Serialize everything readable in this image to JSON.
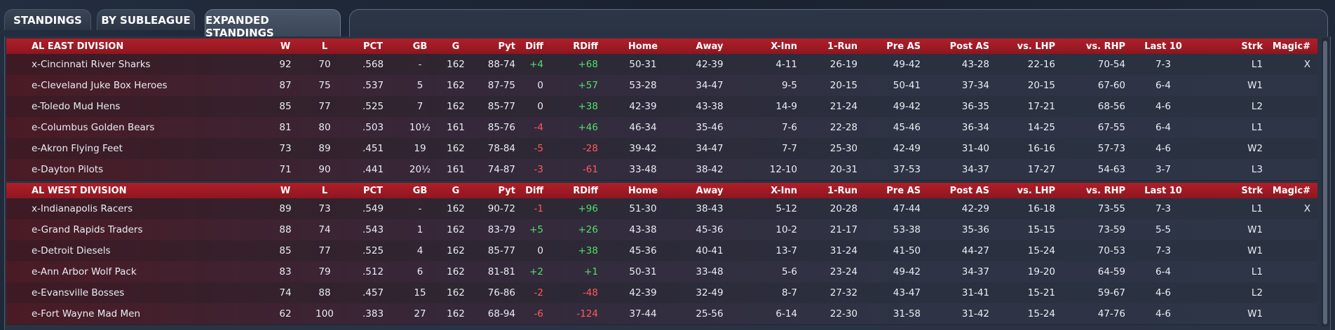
{
  "tabs": [
    {
      "label": "STANDINGS",
      "active": false
    },
    {
      "label": "BY SUBLEAGUE",
      "active": false
    },
    {
      "label": "EXPANDED STANDINGS",
      "active": true
    }
  ],
  "columns": [
    "W",
    "L",
    "PCT",
    "GB",
    "G",
    "Pyt",
    "Diff",
    "RDiff",
    "Home",
    "Away",
    "X-Inn",
    "1-Run",
    "Pre AS",
    "Post AS",
    "vs. LHP",
    "vs. RHP",
    "Last 10",
    "Strk",
    "Magic#"
  ],
  "divisions": [
    {
      "name": "AL EAST DIVISION",
      "teams": [
        {
          "team": "x-Cincinnati River Sharks",
          "W": "92",
          "L": "70",
          "PCT": ".568",
          "GB": "-",
          "G": "162",
          "Pyt": "88-74",
          "Diff": "+4",
          "RDiff": "+68",
          "Home": "50-31",
          "Away": "42-39",
          "XInn": "4-11",
          "OneRun": "26-19",
          "PreAS": "49-42",
          "PostAS": "43-28",
          "vsLHP": "22-16",
          "vsRHP": "70-54",
          "Last10": "7-3",
          "Strk": "L1",
          "Magic": "X"
        },
        {
          "team": "e-Cleveland Juke Box Heroes",
          "W": "87",
          "L": "75",
          "PCT": ".537",
          "GB": "5",
          "G": "162",
          "Pyt": "87-75",
          "Diff": "0",
          "RDiff": "+57",
          "Home": "53-28",
          "Away": "34-47",
          "XInn": "9-5",
          "OneRun": "20-15",
          "PreAS": "50-41",
          "PostAS": "37-34",
          "vsLHP": "20-15",
          "vsRHP": "67-60",
          "Last10": "6-4",
          "Strk": "W1",
          "Magic": ""
        },
        {
          "team": "e-Toledo  Mud Hens",
          "W": "85",
          "L": "77",
          "PCT": ".525",
          "GB": "7",
          "G": "162",
          "Pyt": "85-77",
          "Diff": "0",
          "RDiff": "+38",
          "Home": "42-39",
          "Away": "43-38",
          "XInn": "14-9",
          "OneRun": "21-24",
          "PreAS": "49-42",
          "PostAS": "36-35",
          "vsLHP": "17-21",
          "vsRHP": "68-56",
          "Last10": "4-6",
          "Strk": "L2",
          "Magic": ""
        },
        {
          "team": "e-Columbus Golden Bears",
          "W": "81",
          "L": "80",
          "PCT": ".503",
          "GB": "10½",
          "G": "161",
          "Pyt": "85-76",
          "Diff": "-4",
          "RDiff": "+46",
          "Home": "46-34",
          "Away": "35-46",
          "XInn": "7-6",
          "OneRun": "22-28",
          "PreAS": "45-46",
          "PostAS": "36-34",
          "vsLHP": "14-25",
          "vsRHP": "67-55",
          "Last10": "6-4",
          "Strk": "L1",
          "Magic": ""
        },
        {
          "team": "e-Akron  Flying Feet",
          "W": "73",
          "L": "89",
          "PCT": ".451",
          "GB": "19",
          "G": "162",
          "Pyt": "78-84",
          "Diff": "-5",
          "RDiff": "-28",
          "Home": "39-42",
          "Away": "34-47",
          "XInn": "7-7",
          "OneRun": "25-30",
          "PreAS": "42-49",
          "PostAS": "31-40",
          "vsLHP": "16-16",
          "vsRHP": "57-73",
          "Last10": "4-6",
          "Strk": "W2",
          "Magic": ""
        },
        {
          "team": "e-Dayton Pilots",
          "W": "71",
          "L": "90",
          "PCT": ".441",
          "GB": "20½",
          "G": "161",
          "Pyt": "74-87",
          "Diff": "-3",
          "RDiff": "-61",
          "Home": "33-48",
          "Away": "38-42",
          "XInn": "12-10",
          "OneRun": "20-31",
          "PreAS": "37-53",
          "PostAS": "34-37",
          "vsLHP": "17-27",
          "vsRHP": "54-63",
          "Last10": "3-7",
          "Strk": "L3",
          "Magic": ""
        }
      ]
    },
    {
      "name": "AL WEST DIVISION",
      "teams": [
        {
          "team": "x-Indianapolis Racers",
          "W": "89",
          "L": "73",
          "PCT": ".549",
          "GB": "-",
          "G": "162",
          "Pyt": "90-72",
          "Diff": "-1",
          "RDiff": "+96",
          "Home": "51-30",
          "Away": "38-43",
          "XInn": "5-12",
          "OneRun": "20-28",
          "PreAS": "47-44",
          "PostAS": "42-29",
          "vsLHP": "16-18",
          "vsRHP": "73-55",
          "Last10": "7-3",
          "Strk": "L1",
          "Magic": "X"
        },
        {
          "team": "e-Grand Rapids Traders",
          "W": "88",
          "L": "74",
          "PCT": ".543",
          "GB": "1",
          "G": "162",
          "Pyt": "83-79",
          "Diff": "+5",
          "RDiff": "+26",
          "Home": "43-38",
          "Away": "45-36",
          "XInn": "10-2",
          "OneRun": "21-17",
          "PreAS": "53-38",
          "PostAS": "35-36",
          "vsLHP": "15-15",
          "vsRHP": "73-59",
          "Last10": "5-5",
          "Strk": "W1",
          "Magic": ""
        },
        {
          "team": "e-Detroit Diesels",
          "W": "85",
          "L": "77",
          "PCT": ".525",
          "GB": "4",
          "G": "162",
          "Pyt": "85-77",
          "Diff": "0",
          "RDiff": "+38",
          "Home": "45-36",
          "Away": "40-41",
          "XInn": "13-7",
          "OneRun": "31-24",
          "PreAS": "41-50",
          "PostAS": "44-27",
          "vsLHP": "15-24",
          "vsRHP": "70-53",
          "Last10": "7-3",
          "Strk": "W1",
          "Magic": ""
        },
        {
          "team": "e-Ann Arbor Wolf Pack",
          "W": "83",
          "L": "79",
          "PCT": ".512",
          "GB": "6",
          "G": "162",
          "Pyt": "81-81",
          "Diff": "+2",
          "RDiff": "+1",
          "Home": "50-31",
          "Away": "33-48",
          "XInn": "5-6",
          "OneRun": "23-24",
          "PreAS": "49-42",
          "PostAS": "34-37",
          "vsLHP": "19-20",
          "vsRHP": "64-59",
          "Last10": "6-4",
          "Strk": "L1",
          "Magic": ""
        },
        {
          "team": "e-Evansville Bosses",
          "W": "74",
          "L": "88",
          "PCT": ".457",
          "GB": "15",
          "G": "162",
          "Pyt": "76-86",
          "Diff": "-2",
          "RDiff": "-48",
          "Home": "42-39",
          "Away": "32-49",
          "XInn": "8-7",
          "OneRun": "27-32",
          "PreAS": "43-47",
          "PostAS": "31-41",
          "vsLHP": "15-21",
          "vsRHP": "59-67",
          "Last10": "4-6",
          "Strk": "L2",
          "Magic": ""
        },
        {
          "team": "e-Fort Wayne Mad Men",
          "W": "62",
          "L": "100",
          "PCT": ".383",
          "GB": "27",
          "G": "162",
          "Pyt": "68-94",
          "Diff": "-6",
          "RDiff": "-124",
          "Home": "37-44",
          "Away": "25-56",
          "XInn": "6-14",
          "OneRun": "22-30",
          "PreAS": "31-58",
          "PostAS": "31-42",
          "vsLHP": "15-24",
          "vsRHP": "47-76",
          "Last10": "4-6",
          "Strk": "W1",
          "Magic": ""
        }
      ]
    }
  ]
}
